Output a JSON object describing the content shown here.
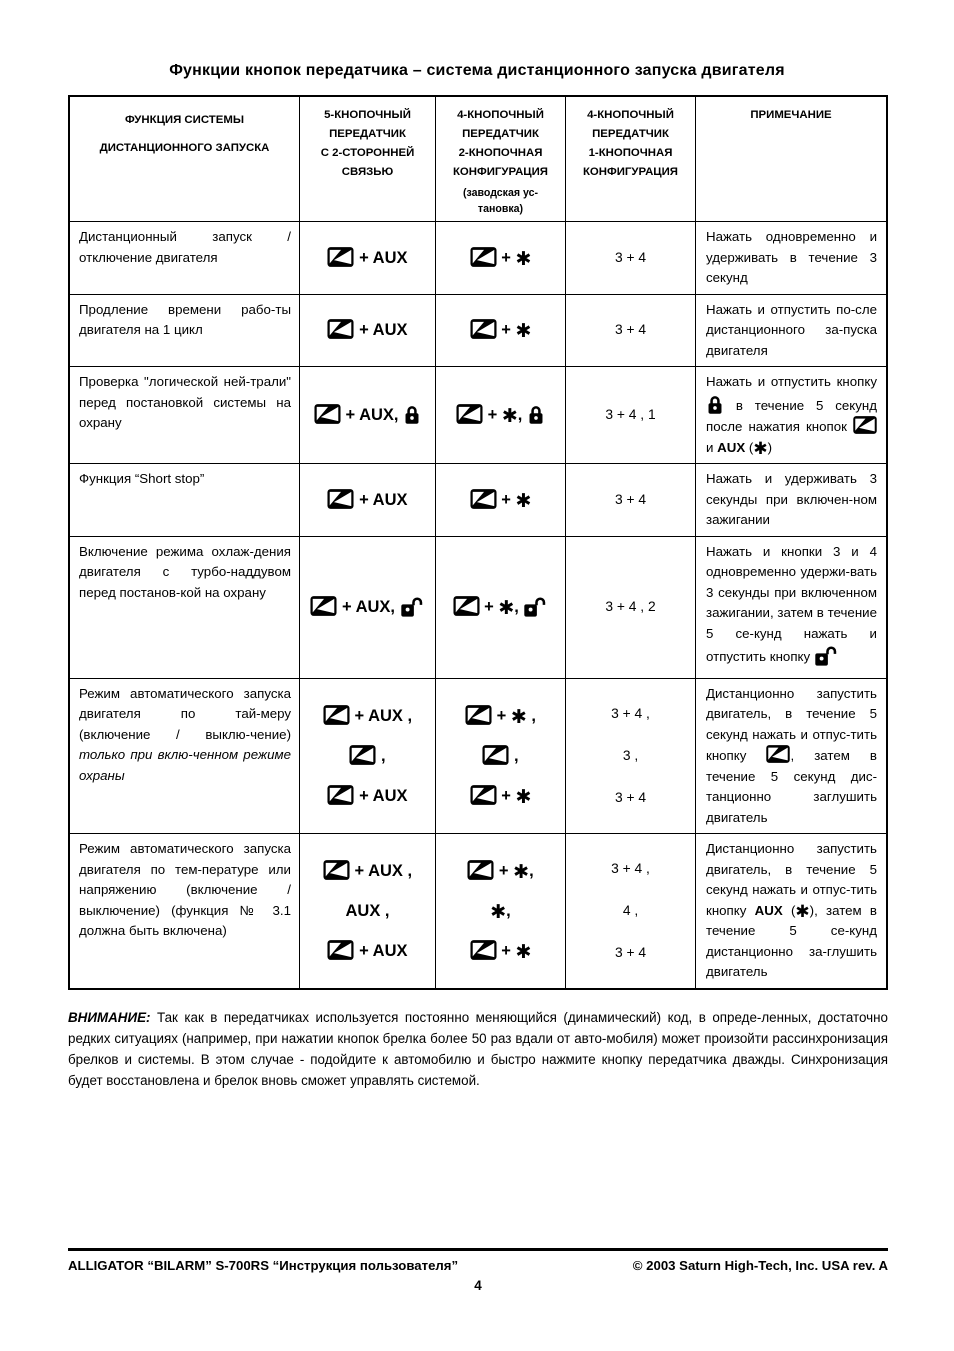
{
  "title": "Функции кнопок передатчика – система дистанционного запуска двигателя",
  "table": {
    "headers": [
      {
        "lines": [
          "ФУНКЦИЯ СИСТЕМЫ",
          "ДИСТАНЦИОННОГО ЗАПУСКА"
        ],
        "sparse": true
      },
      {
        "lines": [
          "5-КНОПОЧНЫЙ",
          "ПЕРЕДАТЧИК",
          "С 2-СТОРОННЕЙ",
          "СВЯЗЬЮ"
        ]
      },
      {
        "lines": [
          "4-КНОПОЧНЫЙ",
          "ПЕРЕДАТЧИК",
          "2-КНОПОЧНАЯ",
          "КОНФИГУРАЦИЯ"
        ],
        "sub": [
          "(заводская ус-",
          "тановка)"
        ]
      },
      {
        "lines": [
          "4-КНОПОЧНЫЙ",
          "ПЕРЕДАТЧИК",
          "1-КНОПОЧНАЯ",
          "КОНФИГУРАЦИЯ"
        ]
      },
      {
        "lines": [
          "ПРИМЕЧАНИЕ"
        ]
      }
    ],
    "rows": [
      {
        "function": [
          {
            "text": "Дистанционный запуск / отключение двигателя"
          }
        ],
        "tx5": [
          [
            {
              "icon": "transmitter-key-icon"
            },
            {
              "text": " + AUX"
            }
          ]
        ],
        "tx4_2btn": [
          [
            {
              "icon": "transmitter-key-icon"
            },
            {
              "text": " + "
            },
            {
              "icon": "asterisk-icon"
            }
          ]
        ],
        "tx4_1btn": [
          "3 + 4"
        ],
        "note": [
          {
            "text": "Нажать одновременно и удерживать в течение 3 секунд"
          }
        ]
      },
      {
        "function": [
          {
            "text": "Продление времени рабо-ты двигателя на 1 цикл"
          }
        ],
        "tx5": [
          [
            {
              "icon": "transmitter-key-icon"
            },
            {
              "text": " + AUX"
            }
          ]
        ],
        "tx4_2btn": [
          [
            {
              "icon": "transmitter-key-icon"
            },
            {
              "text": " + "
            },
            {
              "icon": "asterisk-icon"
            }
          ]
        ],
        "tx4_1btn": [
          "3 + 4"
        ],
        "note": [
          {
            "text": "Нажать и отпустить по-сле дистанционного за-пуска двигателя"
          }
        ]
      },
      {
        "function": [
          {
            "text": "Проверка \"логической ней-трали\" перед постановкой системы на охрану"
          }
        ],
        "tx5": [
          [
            {
              "icon": "transmitter-key-icon"
            },
            {
              "text": " + AUX, "
            },
            {
              "icon": "lock-closed-icon"
            }
          ]
        ],
        "tx4_2btn": [
          [
            {
              "icon": "transmitter-key-icon"
            },
            {
              "text": " + "
            },
            {
              "icon": "asterisk-icon"
            },
            {
              "text": ", "
            },
            {
              "icon": "lock-closed-icon"
            }
          ]
        ],
        "tx4_1btn": [
          "3 + 4  ,  1"
        ],
        "note": [
          {
            "text": "Нажать и отпустить кнопку "
          },
          {
            "icon": "lock-closed-icon"
          },
          {
            "text": " в течение 5 секунд после нажатия кнопок "
          },
          {
            "icon": "transmitter-key-icon"
          },
          {
            "text": " и "
          },
          {
            "text": "AUX",
            "bold": true
          },
          {
            "text": " ("
          },
          {
            "icon": "asterisk-icon"
          },
          {
            "text": ")"
          }
        ]
      },
      {
        "function": [
          {
            "text": "Функция “Short stop”"
          }
        ],
        "tx5": [
          [
            {
              "icon": "transmitter-key-icon"
            },
            {
              "text": " + AUX"
            }
          ]
        ],
        "tx4_2btn": [
          [
            {
              "icon": "transmitter-key-icon"
            },
            {
              "text": " + "
            },
            {
              "icon": "asterisk-icon"
            }
          ]
        ],
        "tx4_1btn": [
          "3 + 4"
        ],
        "note": [
          {
            "text": "Нажать и удерживать 3 секунды при включен-ном зажигании"
          }
        ]
      },
      {
        "function": [
          {
            "text": "Включение режима охлаж-дения двигателя с турбо-наддувом перед постанов-кой на охрану"
          }
        ],
        "tx5": [
          [
            {
              "icon": "transmitter-key-icon"
            },
            {
              "text": " + AUX, "
            },
            {
              "icon": "lock-open-icon"
            }
          ]
        ],
        "tx4_2btn": [
          [
            {
              "icon": "transmitter-key-icon"
            },
            {
              "text": " + "
            },
            {
              "icon": "asterisk-icon"
            },
            {
              "text": ",  "
            },
            {
              "icon": "lock-open-icon"
            }
          ]
        ],
        "tx4_1btn": [
          "3 + 4 , 2"
        ],
        "note": [
          {
            "text": "Нажать и кнопки 3 и 4 одновременно удержи-вать 3 секунды при включенном зажигании, затем в течение 5 се-кунд нажать и отпустить кнопку "
          },
          {
            "icon": "lock-open-icon"
          }
        ]
      },
      {
        "function": [
          {
            "text": "Режим автоматического запуска двигателя по тай-меру (включение / выклю-чение) "
          },
          {
            "text": "только при вклю-ченном режиме охраны",
            "italic": true
          }
        ],
        "tx5": [
          [
            {
              "icon": "transmitter-key-icon"
            },
            {
              "text": " + AUX ,"
            }
          ],
          [
            {
              "icon": "transmitter-key-icon"
            },
            {
              "text": " ,"
            }
          ],
          [
            {
              "icon": "transmitter-key-icon"
            },
            {
              "text": " + AUX"
            }
          ]
        ],
        "tx4_2btn": [
          [
            {
              "icon": "transmitter-key-icon"
            },
            {
              "text": " + "
            },
            {
              "icon": "asterisk-icon"
            },
            {
              "text": " ,"
            }
          ],
          [
            {
              "icon": "transmitter-key-icon"
            },
            {
              "text": " ,"
            }
          ],
          [
            {
              "icon": "transmitter-key-icon"
            },
            {
              "text": " + "
            },
            {
              "icon": "asterisk-icon"
            }
          ]
        ],
        "tx4_1btn": [
          "3 + 4 ,",
          "3 ,",
          "3 + 4"
        ],
        "note": [
          {
            "text": "Дистанционно запустить двигатель, в течение 5 секунд нажать и отпус-тить кнопку "
          },
          {
            "icon": "transmitter-key-icon"
          },
          {
            "text": ", затем в течение 5 секунд дис-танционно заглушить двигатель"
          }
        ]
      },
      {
        "function": [
          {
            "text": "Режим автоматического запуска двигателя по тем-пературе или напряжению (включение / выключение) (функция № 3.1 должна быть включена)"
          }
        ],
        "tx5": [
          [
            {
              "icon": "transmitter-key-icon"
            },
            {
              "text": " + AUX ,"
            }
          ],
          [
            {
              "text": "AUX ,"
            }
          ],
          [
            {
              "icon": "transmitter-key-icon"
            },
            {
              "text": " + AUX"
            }
          ]
        ],
        "tx4_2btn": [
          [
            {
              "icon": "transmitter-key-icon"
            },
            {
              "text": " + "
            },
            {
              "icon": "asterisk-icon"
            },
            {
              "text": ","
            }
          ],
          [
            {
              "icon": "asterisk-icon"
            },
            {
              "text": ","
            }
          ],
          [
            {
              "icon": "transmitter-key-icon"
            },
            {
              "text": " + "
            },
            {
              "icon": "asterisk-icon"
            }
          ]
        ],
        "tx4_1btn": [
          "3 + 4 ,",
          "4 ,",
          "3 + 4"
        ],
        "note": [
          {
            "text": "Дистанционно запустить двигатель, в течение 5 секунд нажать и отпус-тить кнопку "
          },
          {
            "text": "AUX",
            "bold": true
          },
          {
            "text": " ("
          },
          {
            "icon": "asterisk-icon"
          },
          {
            "text": "), затем в течение 5 се-кунд дистанционно за-глушить двигатель"
          }
        ]
      }
    ]
  },
  "warning": {
    "label": "ВНИМАНИЕ:",
    "text": "Так как в передатчиках используется постоянно меняющийся (динамический) код, в опреде-ленных, достаточно редких ситуациях (например, при нажатии кнопок брелка более 50 раз вдали от авто-мобиля) может произойти рассинхронизация брелков и системы. В этом случае - подойдите к автомобилю и быстро нажмите кнопку передатчика дважды. Синхронизация будет восстановлена и брелок вновь сможет управлять системой."
  },
  "footer": {
    "left": "ALLIGATOR “BILARM” S-700RS  “Инструкция пользователя”",
    "right": "© 2003 Saturn High-Tech, Inc. USA rev. A",
    "page_number": "4"
  }
}
